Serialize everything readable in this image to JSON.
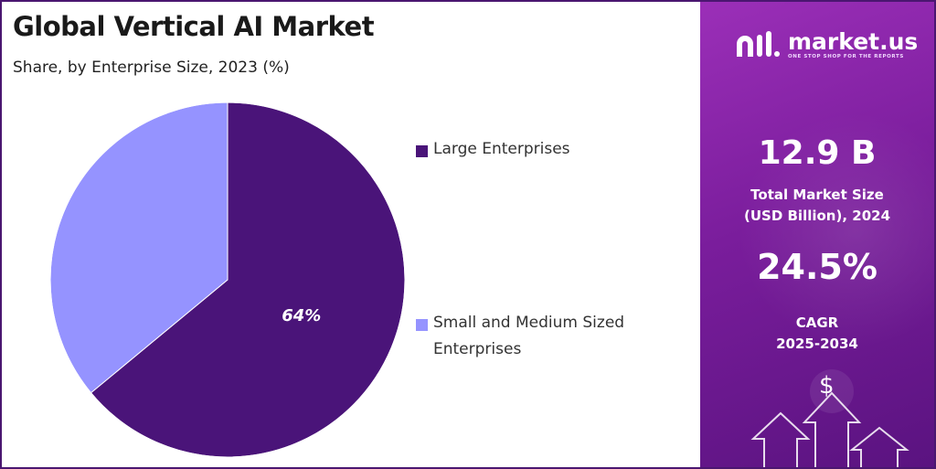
{
  "header": {
    "title": "Global Vertical AI Market",
    "subtitle": "Share, by Enterprise Size, 2023 (%)"
  },
  "colors": {
    "large": "#4a1479",
    "small": "#9593ff",
    "panel_accent": "#7a1d9c"
  },
  "chart_data": {
    "type": "pie",
    "title": "Global Vertical AI Market",
    "subtitle": "Share, by Enterprise Size, 2023 (%)",
    "legend_position": "right",
    "slices": [
      {
        "label": "Large Enterprises",
        "value": 64,
        "data_label": "64%",
        "color": "#4a1479"
      },
      {
        "label": "Small and Medium Sized Enterprises",
        "value": 36,
        "data_label": "",
        "color": "#9593ff"
      }
    ]
  },
  "legend": {
    "items": [
      {
        "label": "Large Enterprises"
      },
      {
        "label": "Small and Medium Sized Enterprises"
      }
    ]
  },
  "brand": {
    "name": "market.us",
    "tagline": "ONE STOP SHOP FOR THE REPORTS",
    "logo_icon": "market-us-logo-icon"
  },
  "stats": {
    "market_size_value": "12.9 B",
    "market_size_label_line1": "Total Market Size",
    "market_size_label_line2": "(USD Billion), 2024",
    "cagr_value": "24.5%",
    "cagr_label_line1": "CAGR",
    "cagr_label_line2": "2025-2034"
  },
  "decor": {
    "currency_symbol": "$",
    "arrow_icon": "up-arrow-icon"
  }
}
